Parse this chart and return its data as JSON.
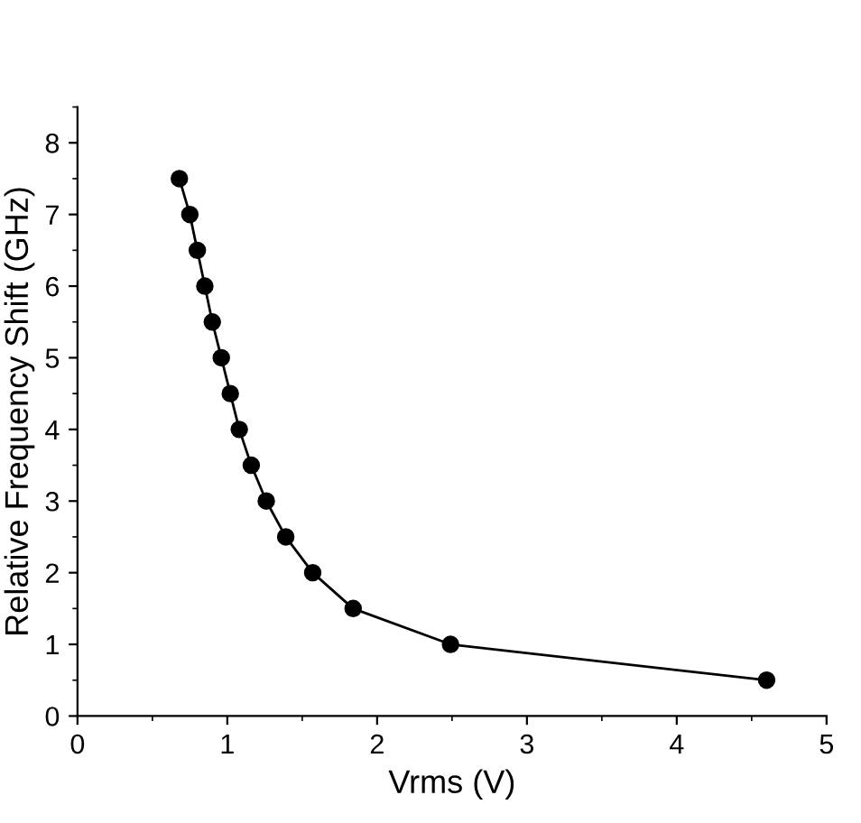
{
  "chart_data": {
    "type": "line",
    "xlabel": "Vrms (V)",
    "ylabel": "Relative Frequency Shift (GHz)",
    "x": [
      0.68,
      0.75,
      0.8,
      0.85,
      0.9,
      0.96,
      1.02,
      1.08,
      1.16,
      1.26,
      1.39,
      1.57,
      1.84,
      2.49,
      4.6
    ],
    "series": [
      {
        "color": "#000000",
        "values": [
          7.5,
          7,
          6.5,
          6,
          5.5,
          5,
          4.5,
          4,
          3.5,
          3,
          2.5,
          2,
          1.5,
          1,
          0.5
        ]
      }
    ],
    "xlim": [
      0,
      5
    ],
    "xticks": [
      0,
      1,
      2,
      3,
      4,
      5
    ],
    "ylim": [
      0,
      8.5
    ],
    "yticks": [
      0,
      1,
      2,
      3,
      4,
      5,
      6,
      7,
      8
    ],
    "marker": "circle",
    "line_style": "solid",
    "grid": false,
    "legend": false
  }
}
